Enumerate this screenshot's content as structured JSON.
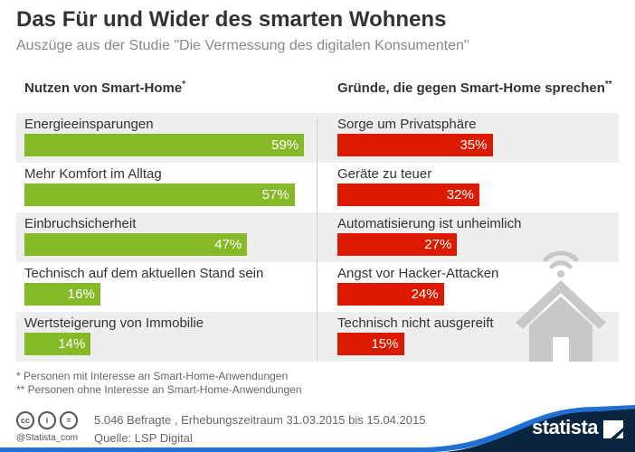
{
  "title": "Das Für und Wider des smarten Wohnens",
  "subtitle": "Auszüge aus der Studie \"Die Vermessung des digitalen Konsumenten\"",
  "chart_data": [
    {
      "type": "bar",
      "orientation": "horizontal",
      "title": "Nutzen von Smart-Home",
      "title_mark": "*",
      "categories": [
        "Energieeinsparungen",
        "Mehr Komfort im Alltag",
        "Einbruchsicherheit",
        "Technisch auf dem aktuellen Stand sein",
        "Wertsteigerung von Immobilie"
      ],
      "values": [
        59,
        57,
        47,
        16,
        14
      ],
      "labels": [
        "59%",
        "57%",
        "47%",
        "16%",
        "14%"
      ],
      "color": "#85b927"
    },
    {
      "type": "bar",
      "orientation": "horizontal",
      "title": "Gründe, die gegen Smart-Home sprechen",
      "title_mark": "**",
      "categories": [
        "Sorge um Privatsphäre",
        "Geräte zu teuer",
        "Automatisierung ist unheimlich",
        "Angst vor Hacker-Attacken",
        "Technisch nicht ausgereift"
      ],
      "values": [
        35,
        32,
        27,
        24,
        15
      ],
      "labels": [
        "35%",
        "32%",
        "27%",
        "24%",
        "15%"
      ],
      "color": "#dc1a00"
    }
  ],
  "footnotes": [
    "* Personen mit Interesse an Smart-Home-Anwendungen",
    "** Personen ohne Interesse an Smart-Home-Anwendungen"
  ],
  "meta": {
    "sample": "5.046 Befragte , Erhebungszeitraum 31.03.2015 bis 15.04.2015",
    "source": "Quelle: LSP Digital",
    "handle": "@Statista_com",
    "brand": "statista"
  },
  "icons": [
    "house-wifi-icon",
    "cc-icon",
    "by-icon",
    "nd-icon",
    "statista-logo"
  ]
}
